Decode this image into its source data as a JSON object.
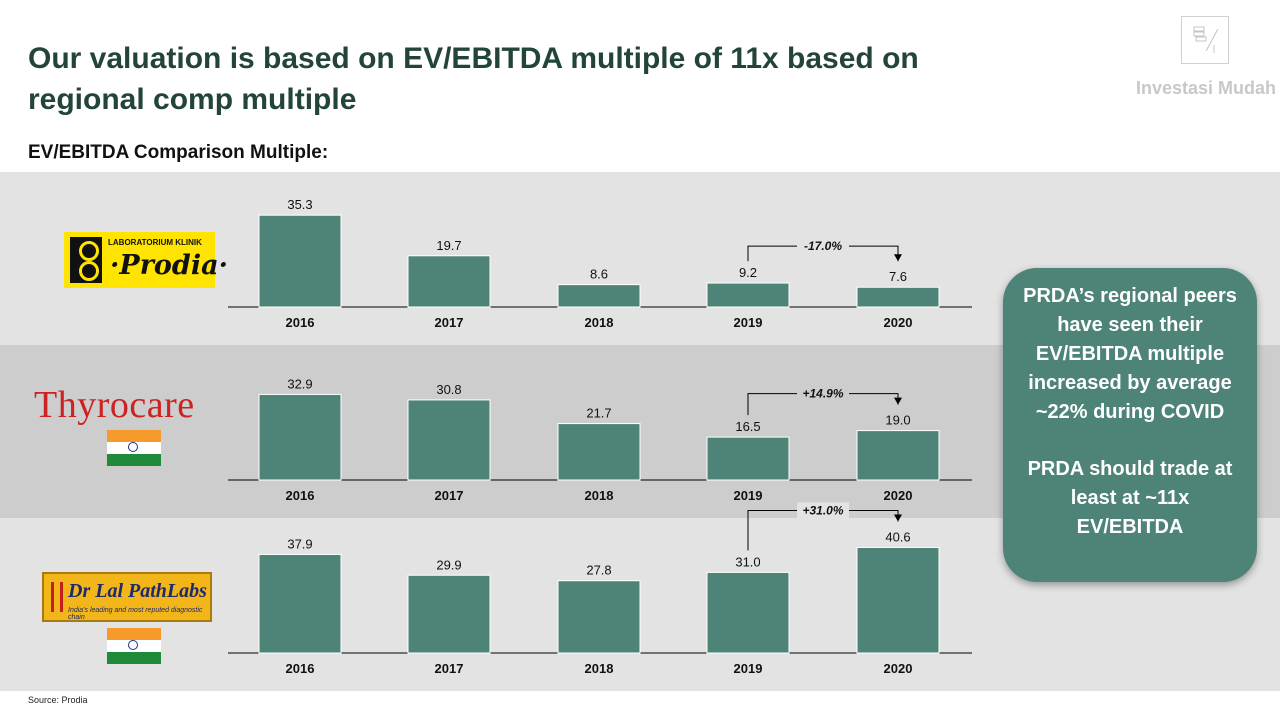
{
  "header": {
    "title": "Our valuation is based on EV/EBITDA multiple of 11x based on regional comp multiple",
    "subtitle": "EV/EBITDA  Comparison Multiple:",
    "brand": "Investasi Mudah"
  },
  "logos": {
    "prodia_small": "LABORATORIUM KLINIK",
    "prodia_name": "·Prodia·",
    "thyrocare_name": "Thyrocare",
    "lal_name": "Dr Lal PathLabs",
    "lal_tagline": "India's leading and most reputed diagnostic chain"
  },
  "callout": {
    "line1": "PRDA’s regional peers have seen their EV/EBITDA multiple increased by average ~22% during COVID",
    "line2": "PRDA should trade at least at ~11x EV/EBITDA"
  },
  "source": "Source: Prodia",
  "colors": {
    "bar": "#4e8378",
    "title": "#23443a",
    "callout_bg": "#4e8378"
  },
  "chart_data": [
    {
      "type": "bar",
      "company": "Prodia",
      "categories": [
        "2016",
        "2017",
        "2018",
        "2019",
        "2020"
      ],
      "values": [
        35.3,
        19.7,
        8.6,
        9.2,
        7.6
      ],
      "value_labels": [
        "35.3",
        "19.7",
        "8.6",
        "9.2",
        "7.6"
      ],
      "annotation": {
        "from": "2019",
        "to": "2020",
        "label": "-17.0%"
      }
    },
    {
      "type": "bar",
      "company": "Thyrocare",
      "categories": [
        "2016",
        "2017",
        "2018",
        "2019",
        "2020"
      ],
      "values": [
        32.9,
        30.8,
        21.7,
        16.5,
        19.0
      ],
      "value_labels": [
        "32.9",
        "30.8",
        "21.7",
        "16.5",
        "19.0"
      ],
      "annotation": {
        "from": "2019",
        "to": "2020",
        "label": "+14.9%"
      }
    },
    {
      "type": "bar",
      "company": "Dr Lal PathLabs",
      "categories": [
        "2016",
        "2017",
        "2018",
        "2019",
        "2020"
      ],
      "values": [
        37.9,
        29.9,
        27.8,
        31.0,
        40.6
      ],
      "value_labels": [
        "37.9",
        "29.9",
        "27.8",
        "31.0",
        "40.6"
      ],
      "annotation": {
        "from": "2019",
        "to": "2020",
        "label": "+31.0%"
      }
    }
  ]
}
